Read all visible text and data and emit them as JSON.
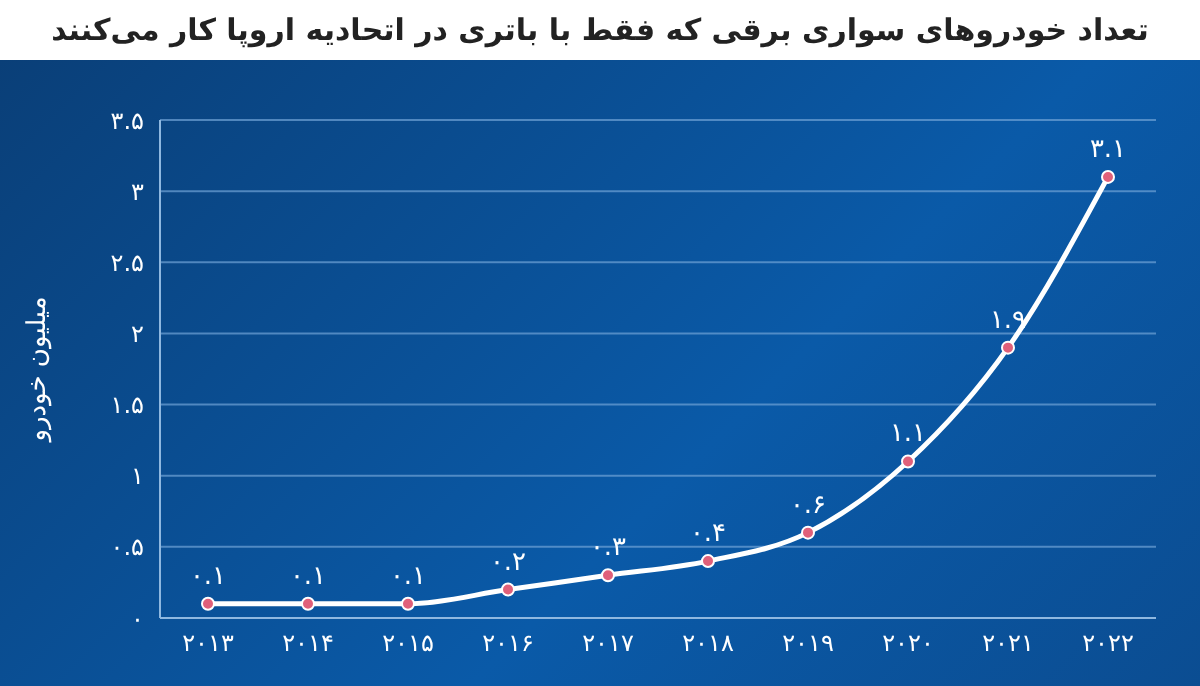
{
  "chart_data": {
    "type": "line",
    "title": "تعداد خودروهای سواری برقی که فقط با باتری در اتحادیه اروپا کار می‌کنند",
    "ylabel": "میلیون خودرو",
    "categories": [
      "۲۰۱۳",
      "۲۰۱۴",
      "۲۰۱۵",
      "۲۰۱۶",
      "۲۰۱۷",
      "۲۰۱۸",
      "۲۰۱۹",
      "۲۰۲۰",
      "۲۰۲۱",
      "۲۰۲۲"
    ],
    "values": [
      0.1,
      0.1,
      0.1,
      0.2,
      0.3,
      0.4,
      0.6,
      1.1,
      1.9,
      3.1
    ],
    "value_labels": [
      "۰.۱",
      "۰.۱",
      "۰.۱",
      "۰.۲",
      "۰.۳",
      "۰.۴",
      "۰.۶",
      "۱.۱",
      "۱.۹",
      "۳.۱"
    ],
    "color": "#ffffff",
    "marker": "circle",
    "line_style": "solid",
    "grid": "y",
    "ylim": [
      0,
      3.5
    ],
    "yticks": [
      {
        "value": 0,
        "label": "۰"
      },
      {
        "value": 0.5,
        "label": "۰.۵"
      },
      {
        "value": 1,
        "label": "۱"
      },
      {
        "value": 1.5,
        "label": "۱.۵"
      },
      {
        "value": 2,
        "label": "۲"
      },
      {
        "value": 2.5,
        "label": "۲.۵"
      },
      {
        "value": 3,
        "label": "۳"
      },
      {
        "value": 3.5,
        "label": "۳.۵"
      }
    ]
  }
}
